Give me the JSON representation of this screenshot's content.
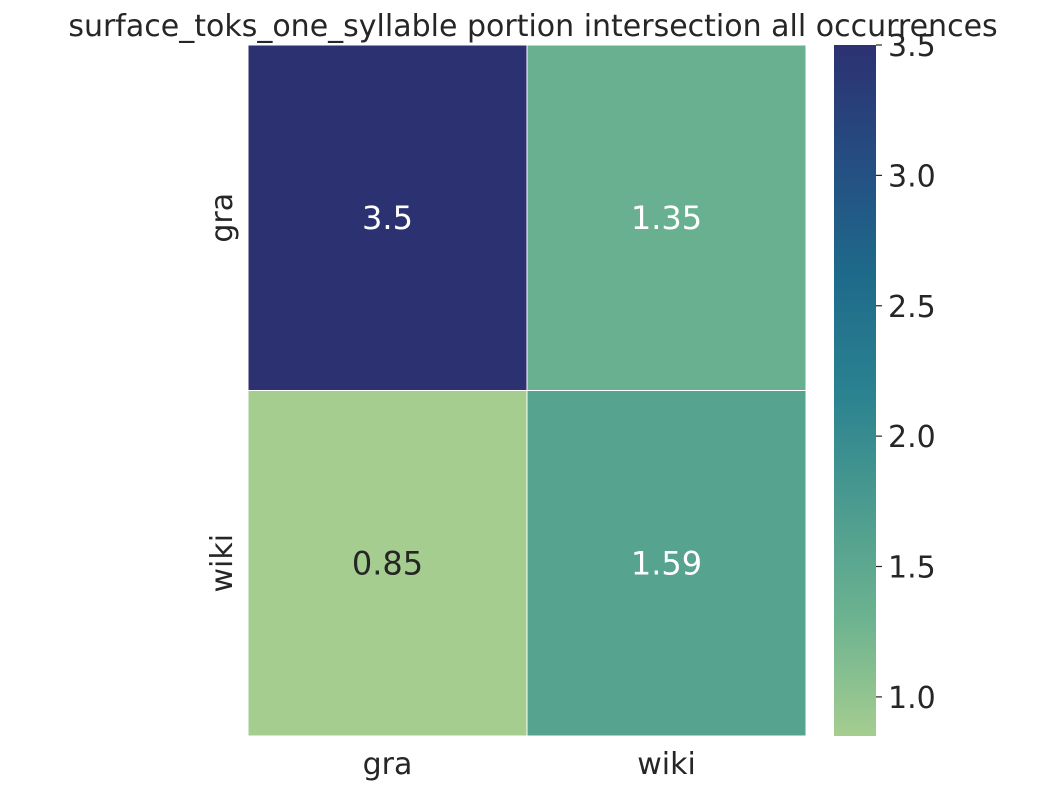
{
  "chart_data": {
    "type": "heatmap",
    "title": "surface_toks_one_syllable portion intersection all occurrences",
    "x_categories": [
      "gra",
      "wiki"
    ],
    "y_categories": [
      "gra",
      "wiki"
    ],
    "values": [
      [
        3.5,
        1.35
      ],
      [
        0.85,
        1.59
      ]
    ],
    "value_labels": [
      [
        "3.5",
        "1.35"
      ],
      [
        "0.85",
        "1.59"
      ]
    ],
    "colorbar": {
      "range": [
        0.85,
        3.5
      ],
      "ticks": [
        1.0,
        1.5,
        2.0,
        2.5,
        3.0,
        3.5
      ],
      "tick_labels": [
        "1.0",
        "1.5",
        "2.0",
        "2.5",
        "3.0",
        "3.5"
      ]
    },
    "colormap": "crest",
    "colormap_stops": [
      "#a5cd90",
      "#6db390",
      "#4b9b8f",
      "#2a8190",
      "#1e6a8a",
      "#254d82",
      "#2c3172"
    ],
    "grid_line_color": "#ffffff",
    "annotation_colors": {
      "light": "#ffffff",
      "dark": "#262626"
    }
  }
}
